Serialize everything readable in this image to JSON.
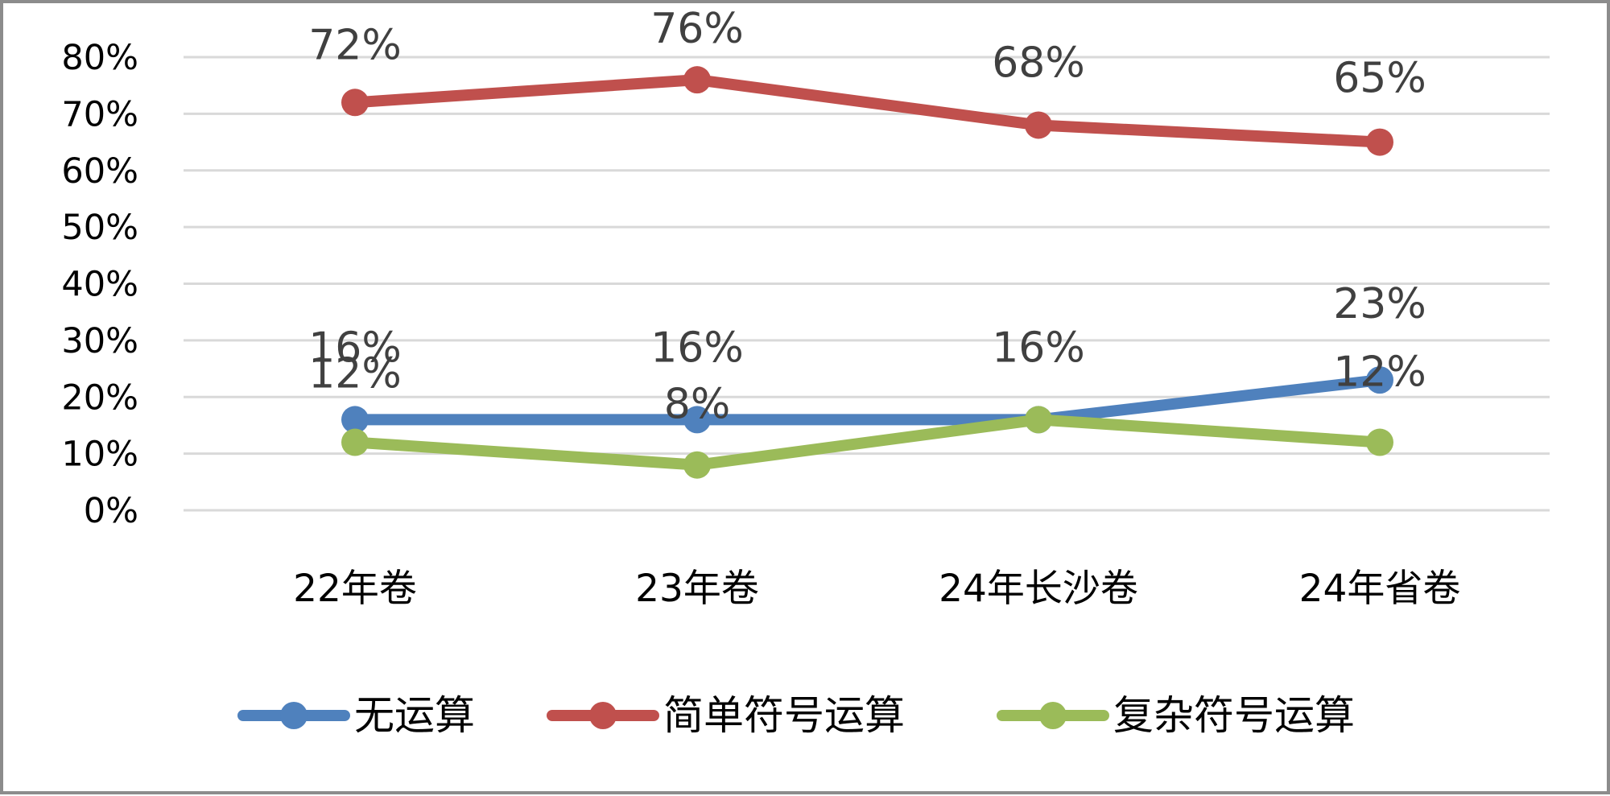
{
  "chart_data": {
    "type": "line",
    "categories": [
      "22年卷",
      "23年卷",
      "24年长沙卷",
      "24年省卷"
    ],
    "yticks": [
      "0%",
      "10%",
      "20%",
      "30%",
      "40%",
      "50%",
      "60%",
      "70%",
      "80%"
    ],
    "ylim": [
      0,
      80
    ],
    "grid": true,
    "legend_position": "bottom",
    "series": [
      {
        "name": "无运算",
        "color": "#4f81bd",
        "values": [
          16,
          16,
          16,
          23
        ],
        "labels": [
          "16%",
          "16%",
          "16%",
          "23%"
        ]
      },
      {
        "name": "简单符号运算",
        "color": "#c0504d",
        "values": [
          72,
          76,
          68,
          65
        ],
        "labels": [
          "72%",
          "76%",
          "68%",
          "65%"
        ]
      },
      {
        "name": "复杂符号运算",
        "color": "#9bbb59",
        "values": [
          12,
          8,
          16,
          12
        ],
        "labels": [
          "12%",
          "8%",
          "",
          "12%"
        ]
      }
    ]
  }
}
